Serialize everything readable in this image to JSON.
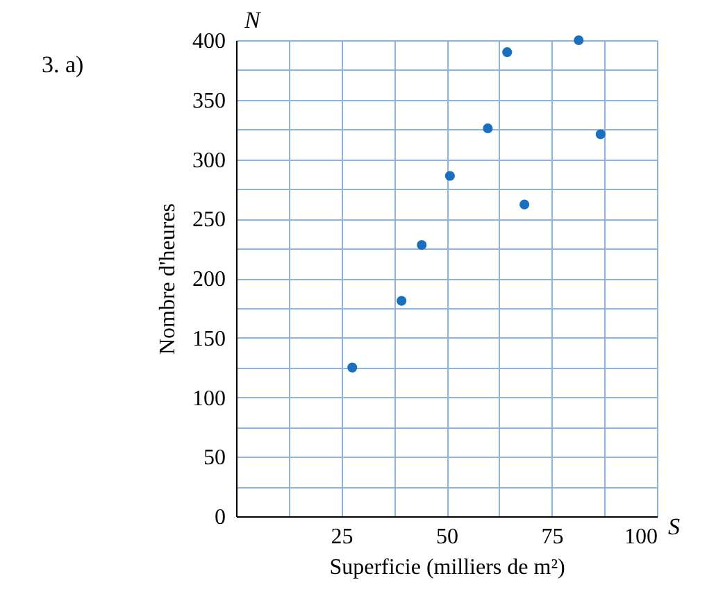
{
  "chart_data": {
    "type": "scatter",
    "xlabel": "Superficie (milliers de m²)",
    "ylabel": "Nombre d'heures",
    "annotations": [
      "3.  a)",
      "N",
      "S"
    ],
    "x": [
      27.6,
      39.3,
      44.1,
      50.8,
      59.8,
      64.4,
      68.5,
      81.4,
      86.6
    ],
    "series": [
      {
        "color": "#1a6fbf",
        "values": [
          125,
          181,
          228,
          286,
          326,
          390,
          262,
          400,
          321
        ]
      }
    ],
    "xlim": [
      0,
      100
    ],
    "ylim": [
      0,
      400
    ],
    "xticks": [
      {
        "value": 12.5,
        "label": null
      },
      25,
      {
        "value": 37.5,
        "label": null
      },
      50,
      {
        "value": 62.5,
        "label": null
      },
      75,
      {
        "value": 87.5,
        "label": null
      },
      100
    ],
    "yticks": [
      0,
      {
        "value": 25,
        "label": null
      },
      50,
      {
        "value": 75,
        "label": null
      },
      100,
      {
        "value": 125,
        "label": null
      },
      150,
      {
        "value": 175,
        "label": null
      },
      200,
      {
        "value": 225,
        "label": null
      },
      250,
      {
        "value": 275,
        "label": null
      },
      300,
      {
        "value": 325,
        "label": null
      },
      350,
      {
        "value": 375,
        "label": null
      },
      400
    ],
    "grid": true,
    "marker": "circle"
  }
}
